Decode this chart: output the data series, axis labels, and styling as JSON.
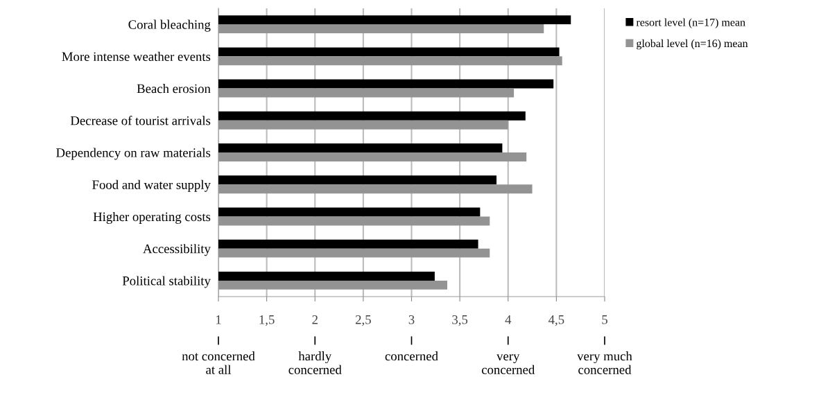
{
  "chart_data": {
    "type": "bar",
    "orientation": "horizontal",
    "categories": [
      "Coral bleaching",
      "More intense weather events",
      "Beach erosion",
      "Decrease of tourist arrivals",
      "Dependency on raw materials",
      "Food and water supply",
      "Higher operating costs",
      "Accessibility",
      "Political stability"
    ],
    "series": [
      {
        "name": "resort level (n=17) mean",
        "color": "#000000",
        "values": [
          4.65,
          4.53,
          4.47,
          4.18,
          3.94,
          3.88,
          3.71,
          3.69,
          3.24
        ]
      },
      {
        "name": "global level (n=16) mean",
        "color": "#939393",
        "values": [
          4.37,
          4.56,
          4.06,
          4.0,
          4.19,
          4.25,
          3.81,
          3.81,
          3.37
        ]
      }
    ],
    "xlim": [
      1,
      5
    ],
    "xticks": [
      1,
      {
        "value": 1.5,
        "label": "1,5"
      },
      2,
      {
        "value": 2.5,
        "label": "2,5"
      },
      3,
      {
        "value": 3.5,
        "label": "3,5"
      },
      4,
      {
        "value": 4.5,
        "label": "4,5"
      },
      5
    ],
    "annotations": [
      "not concerned\nat all",
      "hardly\nconcerned",
      "concerned",
      "very\nconcerned",
      "very much\nconcerned"
    ],
    "grid": "x",
    "legend": "top right"
  }
}
